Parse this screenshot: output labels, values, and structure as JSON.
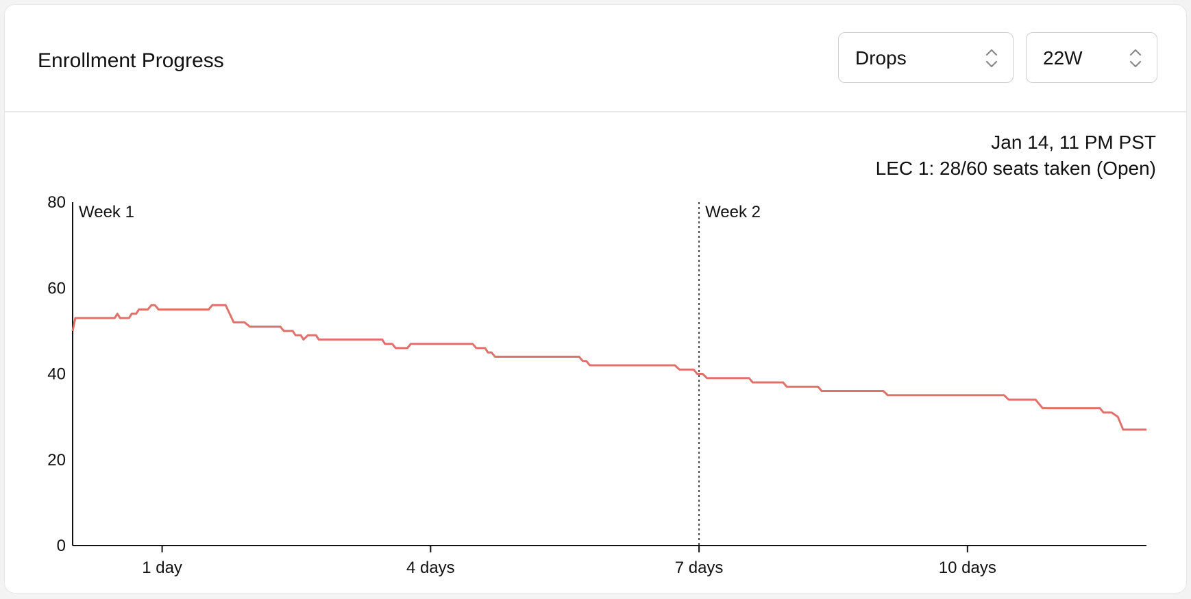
{
  "header": {
    "title": "Enrollment Progress"
  },
  "controls": {
    "metric_select": {
      "value": "Drops"
    },
    "term_select": {
      "value": "22W"
    }
  },
  "info": {
    "timestamp": "Jan 14, 11 PM PST",
    "section_status": "LEC 1: 28/60 seats taken (Open)"
  },
  "colors": {
    "line": "#e0706a",
    "axis": "#111111",
    "marker": "#444444"
  },
  "chart_data": {
    "type": "line",
    "x_unit": "days",
    "xlim": [
      0,
      12
    ],
    "ylim": [
      0,
      80
    ],
    "y_ticks": [
      0,
      20,
      40,
      60,
      80
    ],
    "x_ticks": [
      {
        "value": 1,
        "label": "1 day"
      },
      {
        "value": 4,
        "label": "4 days"
      },
      {
        "value": 7,
        "label": "7 days"
      },
      {
        "value": 10,
        "label": "10 days"
      }
    ],
    "markers": [
      {
        "value": 0,
        "label": "Week 1",
        "style": "solid"
      },
      {
        "value": 7,
        "label": "Week 2",
        "style": "dotted"
      }
    ],
    "series": [
      {
        "color": "#e0706a",
        "x": [
          0,
          0.03,
          0.47,
          0.5,
          0.53,
          0.63,
          0.66,
          0.71,
          0.74,
          0.84,
          0.88,
          0.92,
          0.96,
          1.52,
          1.56,
          1.71,
          1.8,
          1.92,
          1.98,
          2.32,
          2.36,
          2.46,
          2.49,
          2.55,
          2.58,
          2.63,
          2.66,
          2.72,
          2.75,
          2.8,
          3.46,
          3.49,
          3.57,
          3.61,
          3.74,
          3.78,
          4.47,
          4.51,
          4.61,
          4.64,
          4.68,
          4.72,
          5.66,
          5.7,
          5.74,
          5.78,
          6.73,
          6.78,
          6.94,
          6.98,
          7.04,
          7.09,
          7.56,
          7.6,
          7.94,
          7.98,
          8.33,
          8.37,
          9.06,
          9.11,
          10.41,
          10.46,
          10.76,
          10.84,
          11.48,
          11.52,
          11.61,
          11.68,
          11.74,
          12
        ]
      }
    ],
    "values": [
      50,
      53,
      53,
      54,
      53,
      53,
      54,
      54,
      55,
      55,
      56,
      56,
      55,
      55,
      56,
      56,
      52,
      52,
      51,
      51,
      50,
      50,
      49,
      49,
      48,
      49,
      49,
      49,
      48,
      48,
      48,
      47,
      47,
      46,
      46,
      47,
      47,
      46,
      46,
      45,
      45,
      44,
      44,
      43,
      43,
      42,
      42,
      41,
      41,
      40,
      40,
      39,
      39,
      38,
      38,
      37,
      37,
      36,
      36,
      35,
      35,
      34,
      34,
      32,
      32,
      31,
      31,
      30,
      27,
      27
    ]
  }
}
